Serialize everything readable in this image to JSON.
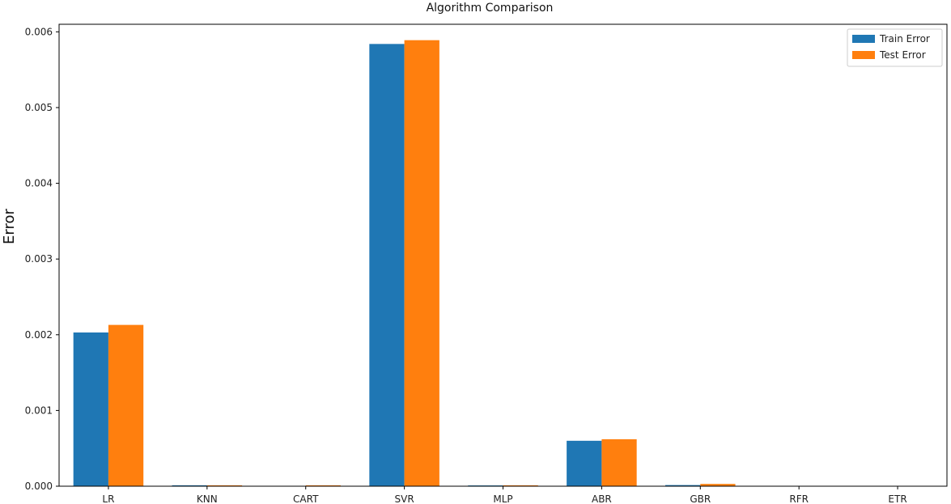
{
  "chart_data": {
    "type": "bar",
    "title": "Algorithm Comparison",
    "xlabel": "",
    "ylabel": "Error",
    "categories": [
      "LR",
      "KNN",
      "CART",
      "SVR",
      "MLP",
      "ABR",
      "GBR",
      "RFR",
      "ETR"
    ],
    "series": [
      {
        "name": "Train Error",
        "color": "#1f77b4",
        "values": [
          0.00203,
          1.2e-05,
          0.0,
          0.00584,
          1e-05,
          0.0006,
          1.5e-05,
          0.0,
          0.0
        ]
      },
      {
        "name": "Test Error",
        "color": "#ff7f0e",
        "values": [
          0.00213,
          1.2e-05,
          1.2e-05,
          0.00589,
          1.2e-05,
          0.00062,
          3e-05,
          2e-06,
          2e-06
        ]
      }
    ],
    "ylim": [
      0,
      0.0061
    ],
    "yticks": [
      "0.000",
      "0.001",
      "0.002",
      "0.003",
      "0.004",
      "0.005",
      "0.006"
    ],
    "grid": false,
    "legend_position": "top-right"
  }
}
